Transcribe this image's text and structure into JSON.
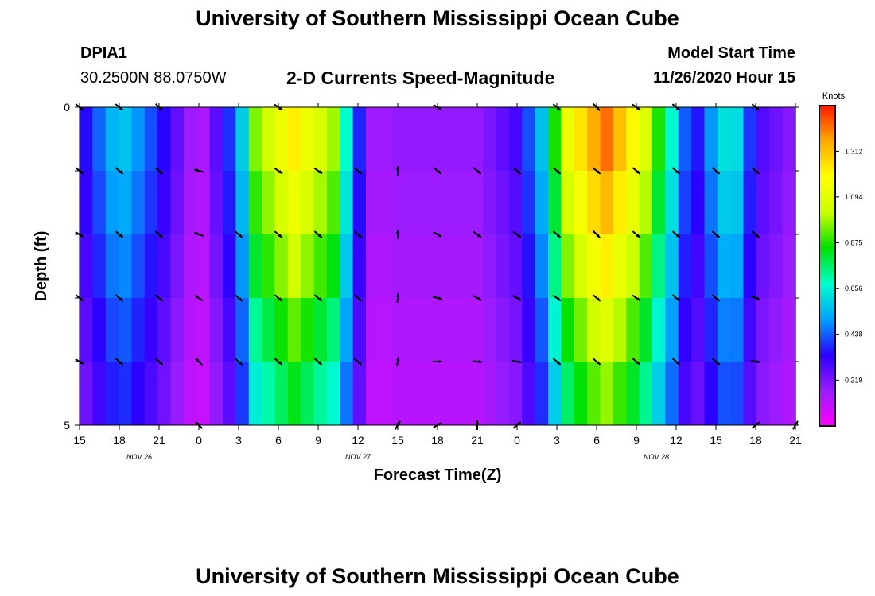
{
  "header": {
    "title": "University of Southern Mississippi Ocean Cube",
    "footer_title": "University of Southern Mississippi Ocean Cube",
    "station": "DPIA1",
    "coords": "30.2500N 88.0750W",
    "chart_title": "2-D Currents Speed-Magnitude",
    "model_start_label": "Model Start Time",
    "model_start_value": "11/26/2020 Hour 15"
  },
  "colors": {
    "ramp": [
      "#ff00ff",
      "#9a1cff",
      "#2a00ff",
      "#00a2ff",
      "#00ffcc",
      "#00e000",
      "#ccff00",
      "#ffff00",
      "#ffaa00",
      "#ff1a00"
    ]
  },
  "chart_data": {
    "type": "heatmap",
    "title": "2-D Currents Speed-Magnitude",
    "xlabel": "Forecast Time(Z)",
    "ylabel": "Depth (ft)",
    "y_tick_labels": [
      "0",
      "5"
    ],
    "y_range": [
      0,
      5
    ],
    "x_tick_labels": [
      "15",
      "18",
      "21",
      "0",
      "3",
      "6",
      "9",
      "12",
      "15",
      "18",
      "21",
      "0",
      "3",
      "6",
      "9",
      "12",
      "15",
      "18",
      "21"
    ],
    "date_labels": [
      {
        "text": "NOV 26",
        "hour_index": 1.5
      },
      {
        "text": "NOV 27",
        "hour_index": 7
      },
      {
        "text": "NOV 28",
        "hour_index": 14.5
      }
    ],
    "colorbar": {
      "unit": "Knots",
      "range": [
        0,
        1.53
      ],
      "ticks": [
        "0.219",
        "0.438",
        "0.656",
        "0.875",
        "1.094",
        "1.312"
      ],
      "tick_values": [
        0.219,
        0.438,
        0.656,
        0.875,
        1.094,
        1.312
      ]
    },
    "depth_levels": 5,
    "time_steps": 55,
    "speed_peaks": [
      {
        "t": 0.0,
        "v": 0.3
      },
      {
        "t": 1.0,
        "v": 0.6
      },
      {
        "t": 2.0,
        "v": 0.38
      },
      {
        "t": 3.0,
        "v": 0.1
      },
      {
        "t": 4.0,
        "v": 0.48
      },
      {
        "t": 4.4,
        "v": 0.95
      },
      {
        "t": 5.4,
        "v": 1.22
      },
      {
        "t": 6.4,
        "v": 0.98
      },
      {
        "t": 7.0,
        "v": 0.4
      },
      {
        "t": 7.4,
        "v": 0.14
      },
      {
        "t": 8.0,
        "v": 0.18
      },
      {
        "t": 10.0,
        "v": 0.18
      },
      {
        "t": 11.0,
        "v": 0.3
      },
      {
        "t": 11.6,
        "v": 0.55
      },
      {
        "t": 12.2,
        "v": 1.1
      },
      {
        "t": 13.2,
        "v": 1.45
      },
      {
        "t": 14.2,
        "v": 1.1
      },
      {
        "t": 15.0,
        "v": 0.6
      },
      {
        "t": 15.4,
        "v": 0.3
      },
      {
        "t": 16.0,
        "v": 0.55
      },
      {
        "t": 16.4,
        "v": 0.7
      },
      {
        "t": 17.0,
        "v": 0.3
      },
      {
        "t": 18.0,
        "v": 0.18
      }
    ],
    "depth_factors": [
      1.0,
      0.93,
      0.85,
      0.76,
      0.68
    ],
    "arrows": [
      {
        "t": 0,
        "d": 0,
        "a": 40
      },
      {
        "t": 1,
        "d": 0,
        "a": 40
      },
      {
        "t": 2,
        "d": 0,
        "a": 45
      },
      {
        "t": 5,
        "d": 0,
        "a": 35
      },
      {
        "t": 9,
        "d": 0,
        "a": 30
      },
      {
        "t": 12,
        "d": 0,
        "a": 40
      },
      {
        "t": 13,
        "d": 0,
        "a": 45
      },
      {
        "t": 14,
        "d": 0,
        "a": 35
      },
      {
        "t": 15,
        "d": 0,
        "a": 40
      },
      {
        "t": 17,
        "d": 0,
        "a": 40
      },
      {
        "t": 0,
        "d": 1,
        "a": 40
      },
      {
        "t": 1,
        "d": 1,
        "a": 40
      },
      {
        "t": 2,
        "d": 1,
        "a": 40
      },
      {
        "t": 3,
        "d": 1,
        "a": 195
      },
      {
        "t": 5,
        "d": 1,
        "a": 35
      },
      {
        "t": 6,
        "d": 1,
        "a": 35
      },
      {
        "t": 7,
        "d": 1,
        "a": 40
      },
      {
        "t": 8,
        "d": 1,
        "a": 270
      },
      {
        "t": 9,
        "d": 1,
        "a": 40
      },
      {
        "t": 10,
        "d": 1,
        "a": 40
      },
      {
        "t": 11,
        "d": 1,
        "a": 40
      },
      {
        "t": 12,
        "d": 1,
        "a": 40
      },
      {
        "t": 13,
        "d": 1,
        "a": 40
      },
      {
        "t": 14,
        "d": 1,
        "a": 40
      },
      {
        "t": 15,
        "d": 1,
        "a": 40
      },
      {
        "t": 16,
        "d": 1,
        "a": 40
      },
      {
        "t": 17,
        "d": 1,
        "a": 40
      },
      {
        "t": 0,
        "d": 2,
        "a": 30
      },
      {
        "t": 1,
        "d": 2,
        "a": 40
      },
      {
        "t": 2,
        "d": 2,
        "a": 40
      },
      {
        "t": 3,
        "d": 2,
        "a": 200
      },
      {
        "t": 4,
        "d": 2,
        "a": 40
      },
      {
        "t": 5,
        "d": 2,
        "a": 40
      },
      {
        "t": 6,
        "d": 2,
        "a": 40
      },
      {
        "t": 7,
        "d": 2,
        "a": 40
      },
      {
        "t": 8,
        "d": 2,
        "a": 270
      },
      {
        "t": 9,
        "d": 2,
        "a": 30
      },
      {
        "t": 10,
        "d": 2,
        "a": 35
      },
      {
        "t": 11,
        "d": 2,
        "a": 35
      },
      {
        "t": 12,
        "d": 2,
        "a": 40
      },
      {
        "t": 13,
        "d": 2,
        "a": 45
      },
      {
        "t": 14,
        "d": 2,
        "a": 40
      },
      {
        "t": 15,
        "d": 2,
        "a": 40
      },
      {
        "t": 16,
        "d": 2,
        "a": 40
      },
      {
        "t": 17,
        "d": 2,
        "a": 40
      },
      {
        "t": 0,
        "d": 3,
        "a": 40
      },
      {
        "t": 1,
        "d": 3,
        "a": 40
      },
      {
        "t": 2,
        "d": 3,
        "a": 40
      },
      {
        "t": 3,
        "d": 3,
        "a": 215
      },
      {
        "t": 4,
        "d": 3,
        "a": 40
      },
      {
        "t": 5,
        "d": 3,
        "a": 40
      },
      {
        "t": 6,
        "d": 3,
        "a": 40
      },
      {
        "t": 7,
        "d": 3,
        "a": 40
      },
      {
        "t": 8,
        "d": 3,
        "a": 275
      },
      {
        "t": 9,
        "d": 3,
        "a": 15
      },
      {
        "t": 10,
        "d": 3,
        "a": 30
      },
      {
        "t": 11,
        "d": 3,
        "a": 30
      },
      {
        "t": 12,
        "d": 3,
        "a": 35
      },
      {
        "t": 13,
        "d": 3,
        "a": 40
      },
      {
        "t": 14,
        "d": 3,
        "a": 35
      },
      {
        "t": 15,
        "d": 3,
        "a": 40
      },
      {
        "t": 16,
        "d": 3,
        "a": 40
      },
      {
        "t": 17,
        "d": 3,
        "a": 20
      },
      {
        "t": 0,
        "d": 4,
        "a": 30
      },
      {
        "t": 1,
        "d": 4,
        "a": 40
      },
      {
        "t": 2,
        "d": 4,
        "a": 40
      },
      {
        "t": 3,
        "d": 4,
        "a": 225
      },
      {
        "t": 4,
        "d": 4,
        "a": 40
      },
      {
        "t": 5,
        "d": 4,
        "a": 40
      },
      {
        "t": 6,
        "d": 4,
        "a": 40
      },
      {
        "t": 7,
        "d": 4,
        "a": 40
      },
      {
        "t": 8,
        "d": 4,
        "a": 280
      },
      {
        "t": 9,
        "d": 4,
        "a": 0
      },
      {
        "t": 10,
        "d": 4,
        "a": 5
      },
      {
        "t": 11,
        "d": 4,
        "a": 10
      },
      {
        "t": 12,
        "d": 4,
        "a": 40
      },
      {
        "t": 13,
        "d": 4,
        "a": 40
      },
      {
        "t": 14,
        "d": 4,
        "a": 40
      },
      {
        "t": 15,
        "d": 4,
        "a": 40
      },
      {
        "t": 16,
        "d": 4,
        "a": 40
      },
      {
        "t": 17,
        "d": 4,
        "a": 10
      },
      {
        "t": 3,
        "d": 5,
        "a": 225
      },
      {
        "t": 8,
        "d": 5,
        "a": 300
      },
      {
        "t": 9,
        "d": 5,
        "a": 330
      },
      {
        "t": 10,
        "d": 5,
        "a": 270
      },
      {
        "t": 11,
        "d": 5,
        "a": 320
      },
      {
        "t": 17,
        "d": 5,
        "a": 320
      },
      {
        "t": 18,
        "d": 5,
        "a": 300
      }
    ]
  }
}
